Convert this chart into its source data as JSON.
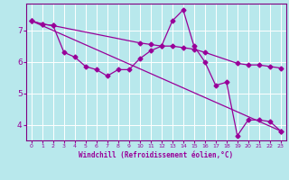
{
  "xlabel": "Windchill (Refroidissement éolien,°C)",
  "background_color": "#b8e8ec",
  "grid_color": "#d0eef2",
  "line_color": "#990099",
  "spine_color": "#800080",
  "xlim": [
    -0.5,
    23.5
  ],
  "ylim": [
    3.5,
    7.85
  ],
  "yticks": [
    4,
    5,
    6,
    7
  ],
  "xticks": [
    0,
    1,
    2,
    3,
    4,
    5,
    6,
    7,
    8,
    9,
    10,
    11,
    12,
    13,
    14,
    15,
    16,
    17,
    18,
    19,
    20,
    21,
    22,
    23
  ],
  "series1_x": [
    0,
    1,
    2,
    10,
    11,
    12,
    13,
    14,
    15,
    16,
    19,
    20,
    21,
    22,
    23
  ],
  "series1_y": [
    7.3,
    7.2,
    7.15,
    6.6,
    6.55,
    6.5,
    6.5,
    6.45,
    6.4,
    6.3,
    5.95,
    5.9,
    5.9,
    5.85,
    5.8
  ],
  "series2_x": [
    0,
    1,
    2,
    3,
    4,
    5,
    6,
    7,
    8,
    9,
    10,
    11,
    12,
    13,
    14,
    15,
    16,
    17,
    18,
    19,
    20,
    21,
    22,
    23
  ],
  "series2_y": [
    7.3,
    7.2,
    7.15,
    6.3,
    6.15,
    5.85,
    5.75,
    5.55,
    5.75,
    5.75,
    6.1,
    6.35,
    6.5,
    7.3,
    7.65,
    6.5,
    6.0,
    5.25,
    5.35,
    3.65,
    4.15,
    4.15,
    4.1,
    3.8
  ],
  "series3_x": [
    0,
    23
  ],
  "series3_y": [
    7.3,
    3.8
  ],
  "markersize": 2.5,
  "linewidth": 0.9
}
